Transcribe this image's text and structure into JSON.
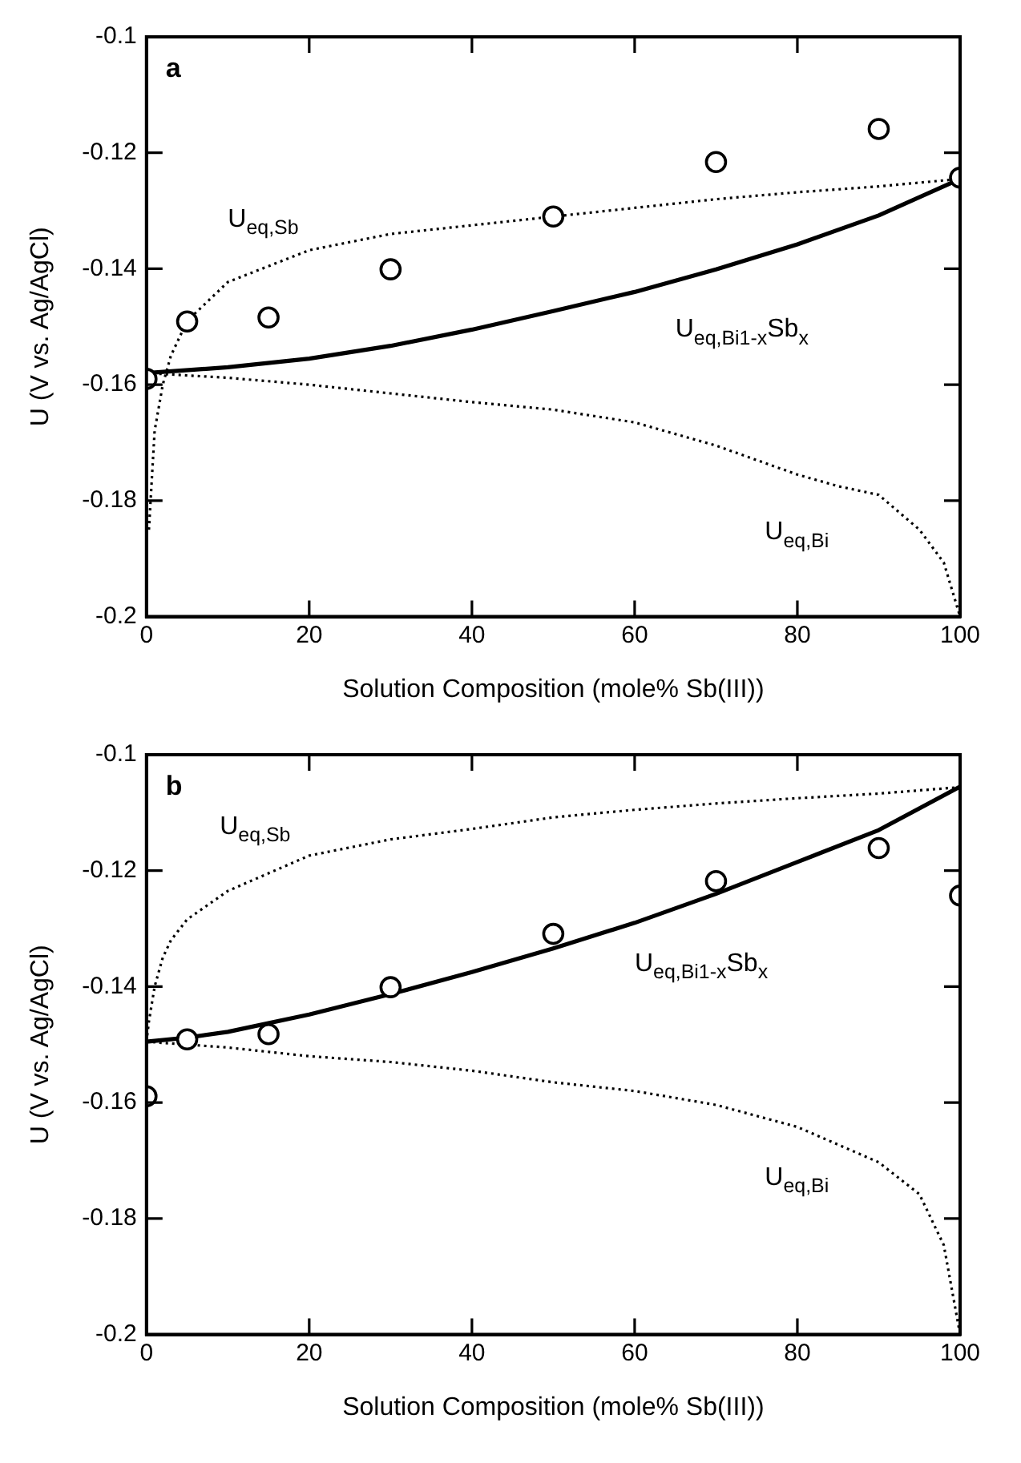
{
  "chart_data": [
    {
      "type": "scatter",
      "xlabel": "Solution Composition (mole% Sb(III))",
      "ylabel": "U (V vs. Ag/AgCl)",
      "xlim": [
        0,
        100
      ],
      "ylim": [
        -0.2,
        -0.1
      ],
      "xticks": [
        0,
        20,
        40,
        60,
        80,
        100
      ],
      "yticks": [
        -0.2,
        -0.18,
        -0.16,
        -0.14,
        -0.12,
        -0.1
      ],
      "grid": false,
      "legend": false,
      "series": [
        {
          "type": "line",
          "color": "#000000",
          "line_style": "dotted",
          "marker": "none",
          "x": [
            0.3,
            1,
            2,
            3,
            5,
            10,
            20,
            30,
            40,
            50,
            60,
            70,
            80,
            90,
            100
          ],
          "values": [
            -0.185,
            -0.168,
            -0.16,
            -0.155,
            -0.149,
            -0.1423,
            -0.1368,
            -0.134,
            -0.1325,
            -0.131,
            -0.1295,
            -0.128,
            -0.1268,
            -0.1258,
            -0.1245
          ]
        },
        {
          "type": "line",
          "color": "#000000",
          "line_style": "dotted",
          "marker": "none",
          "x": [
            0,
            10,
            20,
            30,
            40,
            50,
            60,
            70,
            80,
            85,
            90,
            95,
            98,
            100
          ],
          "values": [
            -0.158,
            -0.1588,
            -0.16,
            -0.1615,
            -0.163,
            -0.1643,
            -0.1665,
            -0.1705,
            -0.1755,
            -0.1775,
            -0.179,
            -0.185,
            -0.1907,
            -0.2
          ]
        },
        {
          "type": "line",
          "color": "#000000",
          "line_style": "solid",
          "marker": "none",
          "x": [
            0,
            10,
            20,
            30,
            40,
            50,
            60,
            70,
            80,
            90,
            100
          ],
          "values": [
            -0.158,
            -0.157,
            -0.1555,
            -0.1533,
            -0.1505,
            -0.1473,
            -0.144,
            -0.1401,
            -0.1358,
            -0.1308,
            -0.1245
          ]
        },
        {
          "type": "scatter",
          "color": "#000000",
          "marker": "circle",
          "x": [
            0,
            5,
            15,
            30,
            50,
            70,
            90,
            100
          ],
          "values": [
            -0.159,
            -0.1491,
            -0.1484,
            -0.1401,
            -0.131,
            -0.1216,
            -0.1159,
            -0.1243
          ]
        }
      ],
      "annotations": [
        "a",
        "U$_{eq,Sb}$",
        "U$_{eq,Bi}$$_{1-x}$Sb$_{x}$",
        "U$_{eq,Bi}$"
      ]
    },
    {
      "type": "scatter",
      "xlabel": "Solution Composition (mole% Sb(III))",
      "ylabel": "U (V vs. Ag/AgCl)",
      "xlim": [
        0,
        100
      ],
      "ylim": [
        -0.2,
        -0.1
      ],
      "xticks": [
        0,
        20,
        40,
        60,
        80,
        100
      ],
      "yticks": [
        -0.2,
        -0.18,
        -0.16,
        -0.14,
        -0.12,
        -0.1
      ],
      "grid": false,
      "legend": false,
      "series": [
        {
          "type": "line",
          "color": "#000000",
          "line_style": "dotted",
          "marker": "none",
          "x": [
            0,
            0.3,
            1,
            2,
            3,
            5,
            10,
            20,
            30,
            40,
            50,
            60,
            70,
            80,
            90,
            100
          ],
          "values": [
            -0.1495,
            -0.146,
            -0.14,
            -0.135,
            -0.132,
            -0.1284,
            -0.1235,
            -0.1174,
            -0.1146,
            -0.1128,
            -0.1108,
            -0.1095,
            -0.1084,
            -0.1075,
            -0.1067,
            -0.1056
          ]
        },
        {
          "type": "line",
          "color": "#000000",
          "line_style": "dotted",
          "marker": "none",
          "x": [
            0,
            10,
            20,
            30,
            40,
            50,
            60,
            70,
            80,
            90,
            95,
            98,
            100
          ],
          "values": [
            -0.1495,
            -0.1505,
            -0.152,
            -0.153,
            -0.1545,
            -0.1565,
            -0.158,
            -0.1604,
            -0.1642,
            -0.1703,
            -0.1758,
            -0.1846,
            -0.2
          ]
        },
        {
          "type": "line",
          "color": "#000000",
          "line_style": "solid",
          "marker": "none",
          "x": [
            0,
            5,
            10,
            20,
            30,
            40,
            50,
            60,
            70,
            80,
            90,
            100
          ],
          "values": [
            -0.1495,
            -0.1488,
            -0.1478,
            -0.1448,
            -0.1413,
            -0.1375,
            -0.1334,
            -0.129,
            -0.124,
            -0.1185,
            -0.113,
            -0.1055
          ]
        },
        {
          "type": "scatter",
          "color": "#000000",
          "marker": "circle",
          "x": [
            0,
            5,
            15,
            30,
            50,
            70,
            90,
            100
          ],
          "values": [
            -0.1589,
            -0.1491,
            -0.1482,
            -0.1401,
            -0.1309,
            -0.1218,
            -0.1161,
            -0.1243
          ]
        }
      ],
      "annotations": [
        "b",
        "U$_{eq,Sb}$",
        "U$_{eq,Bi}$$_{1-x}$Sb$_{x}$",
        "U$_{eq,Bi}$"
      ]
    }
  ]
}
